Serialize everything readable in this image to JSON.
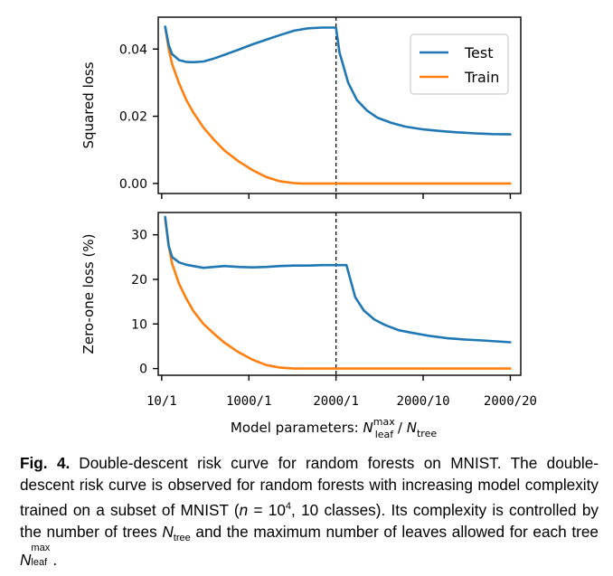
{
  "chart_data": [
    {
      "type": "line",
      "id": "top",
      "ylabel": "Squared loss",
      "ylim": [
        -0.003,
        0.0495
      ],
      "yticks": [
        0.0,
        0.02,
        0.04
      ],
      "yticklabels": [
        "0.00",
        "0.02",
        "0.04"
      ],
      "threshold_x": 0.5,
      "legend": {
        "placement": "top-right",
        "entries": [
          "Test",
          "Train"
        ]
      },
      "series": [
        {
          "name": "Test",
          "color": "#1f77b4",
          "x": [
            0.01,
            0.02,
            0.03,
            0.05,
            0.07,
            0.09,
            0.12,
            0.15,
            0.18,
            0.22,
            0.26,
            0.3,
            0.34,
            0.38,
            0.42,
            0.46,
            0.5,
            0.51,
            0.535,
            0.56,
            0.59,
            0.62,
            0.66,
            0.7,
            0.75,
            0.8,
            0.85,
            0.9,
            0.95,
            1.0
          ],
          "values": [
            0.0467,
            0.0412,
            0.0385,
            0.0367,
            0.0362,
            0.0361,
            0.0363,
            0.0372,
            0.0383,
            0.0398,
            0.0414,
            0.0428,
            0.0442,
            0.0455,
            0.0462,
            0.0464,
            0.0464,
            0.039,
            0.03,
            0.0248,
            0.0216,
            0.0195,
            0.018,
            0.0169,
            0.0161,
            0.0156,
            0.0152,
            0.0149,
            0.0147,
            0.0146
          ]
        },
        {
          "name": "Train",
          "color": "#ff7f0e",
          "x": [
            0.01,
            0.02,
            0.03,
            0.05,
            0.07,
            0.09,
            0.12,
            0.15,
            0.18,
            0.22,
            0.26,
            0.3,
            0.34,
            0.38,
            0.4,
            0.42,
            0.46,
            0.5,
            0.6,
            0.7,
            0.8,
            0.9,
            1.0
          ],
          "values": [
            0.0465,
            0.04,
            0.0355,
            0.0298,
            0.025,
            0.0212,
            0.0166,
            0.013,
            0.0098,
            0.0066,
            0.004,
            0.0019,
            0.0006,
            0.0001,
            0.0,
            0.0,
            0.0,
            0.0,
            0.0,
            0.0,
            0.0,
            0.0,
            0.0
          ]
        }
      ]
    },
    {
      "type": "line",
      "id": "bottom",
      "ylabel": "Zero-one loss (%)",
      "ylim": [
        -1.5,
        35.0
      ],
      "yticks": [
        0,
        10,
        20,
        30
      ],
      "yticklabels": [
        "0",
        "10",
        "20",
        "30"
      ],
      "threshold_x": 0.5,
      "series": [
        {
          "name": "Test",
          "color": "#1f77b4",
          "x": [
            0.01,
            0.02,
            0.03,
            0.05,
            0.07,
            0.09,
            0.12,
            0.15,
            0.18,
            0.22,
            0.26,
            0.3,
            0.34,
            0.38,
            0.42,
            0.46,
            0.5,
            0.53,
            0.555,
            0.58,
            0.61,
            0.64,
            0.68,
            0.72,
            0.77,
            0.82,
            0.87,
            0.92,
            0.96,
            1.0
          ],
          "values": [
            34.0,
            27.5,
            25.0,
            23.8,
            23.3,
            23.0,
            22.6,
            22.8,
            23.0,
            22.8,
            22.7,
            22.8,
            23.0,
            23.1,
            23.1,
            23.2,
            23.2,
            23.2,
            16.0,
            13.0,
            11.0,
            9.8,
            8.6,
            8.0,
            7.3,
            6.8,
            6.5,
            6.3,
            6.1,
            5.9
          ]
        },
        {
          "name": "Train",
          "color": "#ff7f0e",
          "x": [
            0.01,
            0.02,
            0.03,
            0.05,
            0.07,
            0.09,
            0.12,
            0.15,
            0.18,
            0.22,
            0.26,
            0.3,
            0.34,
            0.38,
            0.4,
            0.42,
            0.46,
            0.5,
            0.6,
            0.7,
            0.8,
            0.9,
            1.0
          ],
          "values": [
            33.5,
            27.5,
            23.5,
            19.0,
            15.8,
            13.0,
            10.0,
            7.8,
            5.8,
            3.7,
            2.0,
            0.8,
            0.2,
            0.0,
            0.0,
            0.0,
            0.0,
            0.0,
            0.0,
            0.0,
            0.0,
            0.0,
            0.0
          ]
        }
      ]
    }
  ],
  "xaxis": {
    "ticks": [
      0.0,
      0.25,
      0.5,
      0.75,
      1.0
    ],
    "ticklabels": [
      "10/1",
      "1000/1",
      "2000/1",
      "2000/10",
      "2000/20"
    ],
    "xlim": [
      -0.01,
      1.03
    ],
    "label_prefix": "Model parameters: ",
    "label_N": "N",
    "label_leaf_sup": "max",
    "label_leaf_sub": "leaf",
    "label_slash": " / ",
    "label_tree_sub": "tree"
  },
  "caption": {
    "label": "Fig. 4.",
    "text_1": "Double-descent risk curve for random forests on MNIST. The double-descent risk curve is observed for random forests with increasing model complexity trained on a subset of MNIST (",
    "n_var": "n",
    "eq": " = 10",
    "exp": "4",
    "text_2": ", 10 classes). Its complexity is controlled by the number of trees ",
    "N": "N",
    "tree_sub": "tree",
    "text_3": " and the maximum number of leaves allowed for each tree ",
    "N2": "N",
    "max_sup": "max",
    "leaf_sub": "leaf",
    "text_end": "."
  }
}
